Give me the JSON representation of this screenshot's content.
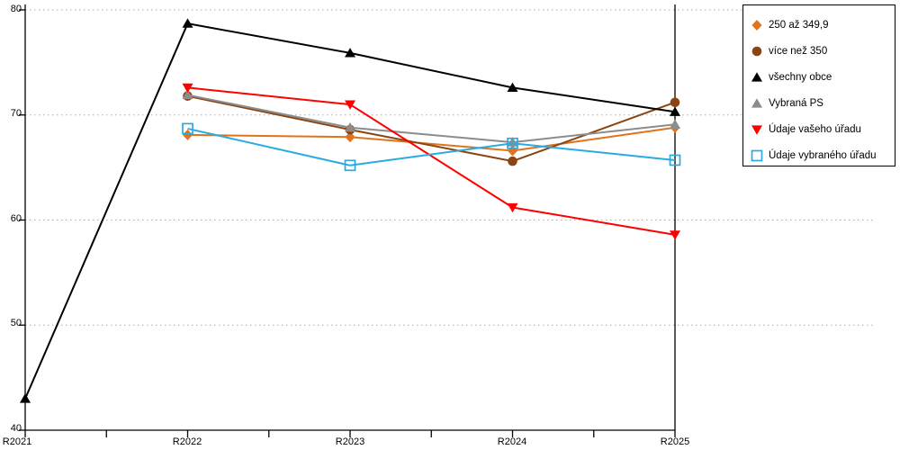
{
  "chart_data": {
    "type": "line",
    "categories": [
      "R2021",
      "R2022",
      "R2023",
      "R2024",
      "R2025"
    ],
    "series": [
      {
        "name": "250 až 349,9",
        "marker": "diamond",
        "color": "#E0731D",
        "values": [
          null,
          68.1,
          67.9,
          66.6,
          68.8
        ]
      },
      {
        "name": "více než 350",
        "marker": "circle",
        "color": "#8B4513",
        "values": [
          null,
          71.8,
          68.6,
          65.6,
          71.2
        ]
      },
      {
        "name": "všechny obce",
        "marker": "triangle-up",
        "color": "#000000",
        "values": [
          43.0,
          78.7,
          75.9,
          72.6,
          70.3
        ]
      },
      {
        "name": "Vybraná PS",
        "marker": "triangle-up",
        "color": "#8C8C8C",
        "values": [
          null,
          71.9,
          68.8,
          67.4,
          69.1
        ]
      },
      {
        "name": "Údaje vašeho úřadu",
        "marker": "triangle-down",
        "color": "#FF0000",
        "values": [
          null,
          72.6,
          71.0,
          61.2,
          58.6
        ]
      },
      {
        "name": "Údaje vybraného úřadu",
        "marker": "square-open",
        "color": "#29ABE2",
        "values": [
          null,
          68.7,
          65.2,
          67.3,
          65.7
        ]
      }
    ],
    "ylim": [
      40,
      80
    ],
    "yticks": [
      40,
      50,
      60,
      70,
      80
    ],
    "xlabel": "",
    "ylabel": "",
    "title": "",
    "grid": "dotted-horizontal",
    "grid_color": "#AAAAAA",
    "axis_color": "#000000",
    "legend_position": "top-right"
  }
}
